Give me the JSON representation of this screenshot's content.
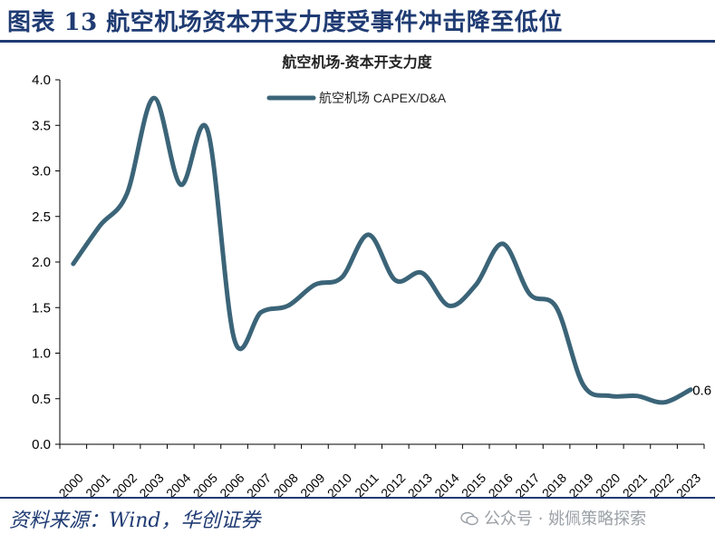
{
  "figure_title": "图表 13  航空机场资本开支力度受事件冲击降至低位",
  "source": "资料来源：Wind，华创证券",
  "watermark": "公众号 · 姚佩策略探索",
  "chart_data": {
    "type": "line",
    "title": "航空机场-资本开支力度",
    "legend_position": "top-center",
    "x": [
      "2000",
      "2001",
      "2002",
      "2003",
      "2004",
      "2005",
      "2006",
      "2007",
      "2008",
      "2009",
      "2010",
      "2011",
      "2012",
      "2013",
      "2014",
      "2015",
      "2016",
      "2017",
      "2018",
      "2019",
      "2020",
      "2021",
      "2022",
      "2023"
    ],
    "series": [
      {
        "name": "航空机场 CAPEX/D&A",
        "color": "#3b6478",
        "values": [
          1.98,
          2.4,
          2.75,
          3.8,
          2.85,
          3.45,
          1.15,
          1.45,
          1.52,
          1.75,
          1.83,
          2.3,
          1.8,
          1.88,
          1.52,
          1.75,
          2.2,
          1.65,
          1.5,
          0.65,
          0.53,
          0.53,
          0.46,
          0.6
        ]
      }
    ],
    "end_label": "0.6",
    "ylim": [
      0.0,
      4.0
    ],
    "yticks": [
      "0.0",
      "0.5",
      "1.0",
      "1.5",
      "2.0",
      "2.5",
      "3.0",
      "3.5",
      "4.0"
    ],
    "grid": false,
    "xlabel": "",
    "ylabel": ""
  }
}
